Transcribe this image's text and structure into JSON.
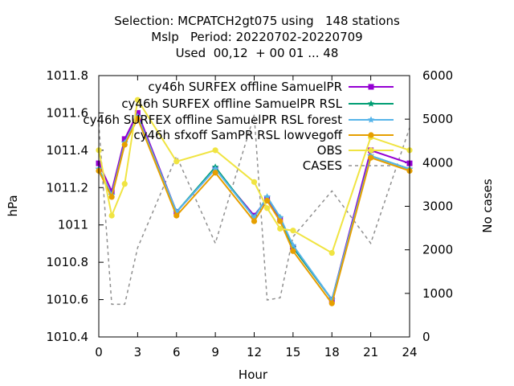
{
  "title_lines": [
    "Selection: MCPATCH2gt075 using   148 stations",
    "Mslp   Period: 20220702-20220709",
    "Used  00,12  + 00 01 ... 48"
  ],
  "chart_data": {
    "type": "line",
    "xlabel": "Hour",
    "ylabel": "hPa",
    "y2label": "No cases",
    "xlim": [
      0,
      24
    ],
    "ylim": [
      1010.4,
      1011.8
    ],
    "y2lim": [
      0,
      6000
    ],
    "xticks": [
      0,
      3,
      6,
      9,
      12,
      15,
      18,
      21,
      24
    ],
    "yticks": [
      "1010.4",
      "1010.6",
      "1010.8",
      "1011",
      "1011.2",
      "1011.4",
      "1011.6",
      "1011.8"
    ],
    "y2ticks": [
      0,
      1000,
      2000,
      3000,
      4000,
      5000,
      6000
    ],
    "legend_position": "top-right",
    "grid": false,
    "series": [
      {
        "name": "cy46h_SURFEX_offline_SamuelPR",
        "legend_label": "cy46h SURFEX offline SamuelPR",
        "color": "#9400d3",
        "marker": "square",
        "axis": "left",
        "x": [
          0,
          1,
          2,
          3,
          6,
          9,
          12,
          13,
          14,
          15,
          18,
          21,
          24
        ],
        "y": [
          1011.33,
          1011.18,
          1011.46,
          1011.6,
          1011.07,
          1011.3,
          1011.05,
          1011.14,
          1011.03,
          1010.88,
          1010.6,
          1011.4,
          1011.33
        ]
      },
      {
        "name": "cy46h_SURFEX_offline_SamuelPR_RSL",
        "legend_label": "cy46h SURFEX offline SamuelPR RSL",
        "color": "#009e73",
        "marker": "star",
        "axis": "left",
        "x": [
          0,
          1,
          2,
          3,
          6,
          9,
          12,
          13,
          14,
          15,
          18,
          21,
          24
        ],
        "y": [
          1011.3,
          1011.16,
          1011.44,
          1011.58,
          1011.07,
          1011.31,
          1011.04,
          1011.15,
          1011.04,
          1010.88,
          1010.6,
          1011.37,
          1011.3
        ]
      },
      {
        "name": "cy46h_SURFEX_offline_SamuelPR_RSL_forest",
        "legend_label": "cy46h SURFEX offline SamuelPR RSL forest",
        "color": "#56b4e9",
        "marker": "star",
        "axis": "left",
        "x": [
          0,
          1,
          2,
          3,
          6,
          9,
          12,
          13,
          14,
          15,
          18,
          21,
          24
        ],
        "y": [
          1011.3,
          1011.16,
          1011.44,
          1011.58,
          1011.07,
          1011.3,
          1011.04,
          1011.15,
          1011.04,
          1010.89,
          1010.6,
          1011.37,
          1011.3
        ]
      },
      {
        "name": "cy46h_sfxoff_SamPR_RSL_lowvegoff",
        "legend_label": "cy46h sfxoff SamPR RSL lowvegoff",
        "color": "#e69f00",
        "marker": "circle",
        "axis": "left",
        "x": [
          0,
          1,
          2,
          3,
          6,
          9,
          12,
          13,
          14,
          15,
          18,
          21,
          24
        ],
        "y": [
          1011.29,
          1011.15,
          1011.43,
          1011.57,
          1011.05,
          1011.28,
          1011.02,
          1011.13,
          1011.02,
          1010.86,
          1010.58,
          1011.36,
          1011.29
        ]
      },
      {
        "name": "OBS",
        "legend_label": "OBS",
        "color": "#f0e442",
        "marker": "circle",
        "axis": "left",
        "x": [
          0,
          1,
          2,
          3,
          6,
          9,
          12,
          13,
          14,
          15,
          18,
          21,
          24
        ],
        "y": [
          1011.4,
          1011.05,
          1011.22,
          1011.67,
          1011.34,
          1011.4,
          1011.23,
          1011.09,
          1010.98,
          1010.97,
          1010.85,
          1011.47,
          1011.4
        ]
      },
      {
        "name": "CASES",
        "legend_label": "CASES",
        "color": "#909090",
        "marker": "none",
        "dashed": true,
        "axis": "right",
        "x": [
          0,
          1,
          2,
          3,
          6,
          9,
          12,
          13,
          14,
          15,
          18,
          21,
          24
        ],
        "y": [
          4900,
          750,
          750,
          2050,
          4150,
          2150,
          5100,
          850,
          900,
          2300,
          3350,
          2150,
          4800
        ]
      }
    ]
  }
}
